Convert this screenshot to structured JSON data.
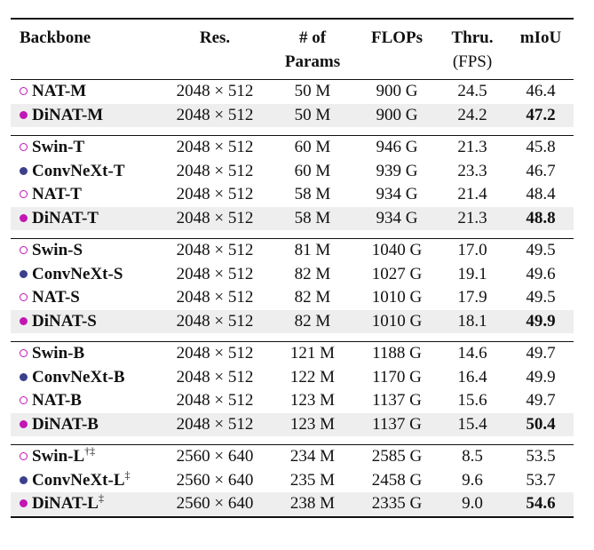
{
  "headers": {
    "backbone": "Backbone",
    "res": "Res.",
    "params_line1": "# of",
    "params_line2": "Params",
    "flops": "FLOPs",
    "thru_line1": "Thru.",
    "thru_line2": "(FPS)",
    "miou": "mIoU"
  },
  "marker_colors": {
    "nat": "#c216b5",
    "convnext": "#3b3f8c"
  },
  "groups": [
    [
      {
        "name": "NAT-M",
        "sup": "",
        "marker": "hollow",
        "res": "2048 × 512",
        "params": "50 M",
        "flops": "900 G",
        "thru": "24.5",
        "miou": "46.4",
        "best": false,
        "shade": false
      },
      {
        "name": "DiNAT-M",
        "sup": "",
        "marker": "filled-m",
        "res": "2048 × 512",
        "params": "50 M",
        "flops": "900 G",
        "thru": "24.2",
        "miou": "47.2",
        "best": true,
        "shade": true
      }
    ],
    [
      {
        "name": "Swin-T",
        "sup": "",
        "marker": "hollow",
        "res": "2048 × 512",
        "params": "60 M",
        "flops": "946 G",
        "thru": "21.3",
        "miou": "45.8",
        "best": false,
        "shade": false
      },
      {
        "name": "ConvNeXt-T",
        "sup": "",
        "marker": "filled-b",
        "res": "2048 × 512",
        "params": "60 M",
        "flops": "939 G",
        "thru": "23.3",
        "miou": "46.7",
        "best": false,
        "shade": false
      },
      {
        "name": "NAT-T",
        "sup": "",
        "marker": "hollow",
        "res": "2048 × 512",
        "params": "58 M",
        "flops": "934 G",
        "thru": "21.4",
        "miou": "48.4",
        "best": false,
        "shade": false
      },
      {
        "name": "DiNAT-T",
        "sup": "",
        "marker": "filled-m",
        "res": "2048 × 512",
        "params": "58 M",
        "flops": "934 G",
        "thru": "21.3",
        "miou": "48.8",
        "best": true,
        "shade": true
      }
    ],
    [
      {
        "name": "Swin-S",
        "sup": "",
        "marker": "hollow",
        "res": "2048 × 512",
        "params": "81 M",
        "flops": "1040 G",
        "thru": "17.0",
        "miou": "49.5",
        "best": false,
        "shade": false
      },
      {
        "name": "ConvNeXt-S",
        "sup": "",
        "marker": "filled-b",
        "res": "2048 × 512",
        "params": "82 M",
        "flops": "1027 G",
        "thru": "19.1",
        "miou": "49.6",
        "best": false,
        "shade": false
      },
      {
        "name": "NAT-S",
        "sup": "",
        "marker": "hollow",
        "res": "2048 × 512",
        "params": "82 M",
        "flops": "1010 G",
        "thru": "17.9",
        "miou": "49.5",
        "best": false,
        "shade": false
      },
      {
        "name": "DiNAT-S",
        "sup": "",
        "marker": "filled-m",
        "res": "2048 × 512",
        "params": "82 M",
        "flops": "1010 G",
        "thru": "18.1",
        "miou": "49.9",
        "best": true,
        "shade": true
      }
    ],
    [
      {
        "name": "Swin-B",
        "sup": "",
        "marker": "hollow",
        "res": "2048 × 512",
        "params": "121 M",
        "flops": "1188 G",
        "thru": "14.6",
        "miou": "49.7",
        "best": false,
        "shade": false
      },
      {
        "name": "ConvNeXt-B",
        "sup": "",
        "marker": "filled-b",
        "res": "2048 × 512",
        "params": "122 M",
        "flops": "1170 G",
        "thru": "16.4",
        "miou": "49.9",
        "best": false,
        "shade": false
      },
      {
        "name": "NAT-B",
        "sup": "",
        "marker": "hollow",
        "res": "2048 × 512",
        "params": "123 M",
        "flops": "1137 G",
        "thru": "15.6",
        "miou": "49.7",
        "best": false,
        "shade": false
      },
      {
        "name": "DiNAT-B",
        "sup": "",
        "marker": "filled-m",
        "res": "2048 × 512",
        "params": "123 M",
        "flops": "1137 G",
        "thru": "15.4",
        "miou": "50.4",
        "best": true,
        "shade": true
      }
    ],
    [
      {
        "name": "Swin-L",
        "sup": "†‡",
        "marker": "hollow",
        "res": "2560 × 640",
        "params": "234 M",
        "flops": "2585 G",
        "thru": "8.5",
        "miou": "53.5",
        "best": false,
        "shade": false
      },
      {
        "name": "ConvNeXt-L",
        "sup": "‡",
        "marker": "filled-b",
        "res": "2560 × 640",
        "params": "235 M",
        "flops": "2458 G",
        "thru": "9.6",
        "miou": "53.7",
        "best": false,
        "shade": false
      },
      {
        "name": "DiNAT-L",
        "sup": "‡",
        "marker": "filled-m",
        "res": "2560 × 640",
        "params": "238 M",
        "flops": "2335 G",
        "thru": "9.0",
        "miou": "54.6",
        "best": true,
        "shade": true
      }
    ]
  ]
}
